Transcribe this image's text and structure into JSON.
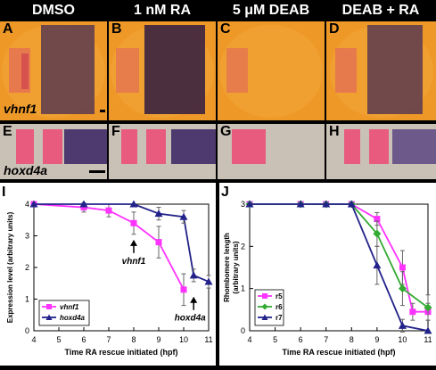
{
  "columns": {
    "col1": "DMSO",
    "col2": "1 nM RA",
    "col3": "5 μM DEAB",
    "col4": "DEAB + RA"
  },
  "panels": {
    "A": "A",
    "B": "B",
    "C": "C",
    "D": "D",
    "E": "E",
    "F": "F",
    "G": "G",
    "H": "H",
    "I": "I",
    "J": "J"
  },
  "genes": {
    "row1": "vhnf1",
    "row2": "hoxd4a"
  },
  "colors": {
    "embryo": "#ee9828",
    "stain_purple": "#4a3060",
    "stain_red": "#e8507a",
    "vhnf1": "#ff33ff",
    "hoxd4a": "#22228a",
    "r5": "#ff33ff",
    "r6": "#33aa33",
    "r7": "#22228a"
  },
  "chart_data": [
    {
      "type": "line",
      "title": "",
      "xlabel": "Time RA rescue initiated (hpf)",
      "ylabel": "Expression level (arbitrary units)",
      "xlim": [
        4,
        11
      ],
      "ylim": [
        0,
        4
      ],
      "xticks": [
        "4",
        "5",
        "6",
        "7",
        "8",
        "9",
        "10",
        "11"
      ],
      "yticks": [
        "0",
        "1",
        "2",
        "3",
        "4"
      ],
      "legend_position": "bottom-left",
      "annotations": [
        "vhnf1",
        "hoxd4a"
      ],
      "series": [
        {
          "name": "vhnf1",
          "x": [
            4,
            6,
            7,
            8,
            9,
            10
          ],
          "y": [
            4.0,
            3.9,
            3.8,
            3.4,
            2.8,
            1.3
          ],
          "err": [
            0.05,
            0.15,
            0.2,
            0.35,
            0.5,
            0.5
          ]
        },
        {
          "name": "hoxd4a",
          "x": [
            4,
            6,
            8,
            9,
            10,
            10.4,
            11
          ],
          "y": [
            4.0,
            4.0,
            4.0,
            3.7,
            3.6,
            1.75,
            1.55
          ],
          "err": [
            0.05,
            0.05,
            0.05,
            0.2,
            0.2,
            0.2,
            0.2
          ]
        }
      ]
    },
    {
      "type": "line",
      "title": "",
      "xlabel": "Time RA rescue initiated (hpf)",
      "ylabel": "Rhombomere length (arbitrary units)",
      "xlim": [
        4,
        11
      ],
      "ylim": [
        0,
        3
      ],
      "xticks": [
        "4",
        "5",
        "6",
        "7",
        "8",
        "9",
        "10",
        "11"
      ],
      "yticks": [
        "0",
        "1",
        "2",
        "3"
      ],
      "legend_position": "bottom-left",
      "series": [
        {
          "name": "r5",
          "x": [
            4,
            6,
            7,
            8,
            9,
            10,
            10.4,
            11
          ],
          "y": [
            3,
            3,
            3,
            3,
            2.65,
            1.5,
            0.45,
            0.45
          ],
          "err": [
            0,
            0,
            0,
            0,
            0.15,
            0.4,
            0.2,
            0.2
          ]
        },
        {
          "name": "r6",
          "x": [
            4,
            6,
            7,
            8,
            9,
            10,
            11
          ],
          "y": [
            3,
            3,
            3,
            3,
            2.3,
            1.0,
            0.55
          ],
          "err": [
            0,
            0,
            0,
            0,
            0.3,
            0.4,
            0.3
          ]
        },
        {
          "name": "r7",
          "x": [
            4,
            6,
            7,
            8,
            9,
            10,
            11
          ],
          "y": [
            3,
            3,
            3,
            3,
            1.55,
            0.12,
            0.0
          ],
          "err": [
            0,
            0,
            0,
            0,
            0.45,
            0.15,
            0.05
          ]
        }
      ]
    }
  ]
}
